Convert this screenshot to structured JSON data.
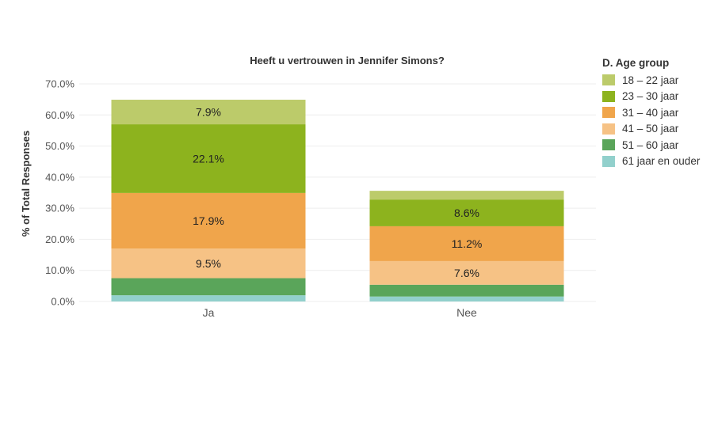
{
  "chart_data": {
    "type": "bar",
    "stacked": true,
    "title": "Heeft u vertrouwen in Jennifer Simons?",
    "ylabel": "% of Total Responses",
    "xlabel": "",
    "ylim": [
      0,
      70
    ],
    "yticks": [
      "70.0%",
      "60.0%",
      "50.0%",
      "40.0%",
      "30.0%",
      "20.0%",
      "10.0%",
      "0.0%"
    ],
    "categories": [
      "Ja",
      "Nee"
    ],
    "legend_title": "D. Age group",
    "legend_position": "right",
    "grid": true,
    "series": [
      {
        "name": "61 jaar en ouder",
        "color": "#92d0cc",
        "values": [
          2.0,
          1.6
        ],
        "labels": [
          "",
          ""
        ]
      },
      {
        "name": "51 – 60 jaar",
        "color": "#5aa55a",
        "values": [
          5.5,
          3.8
        ],
        "labels": [
          "",
          ""
        ]
      },
      {
        "name": "41 – 50 jaar",
        "color": "#f6c285",
        "values": [
          9.5,
          7.6
        ],
        "labels": [
          "9.5%",
          "7.6%"
        ]
      },
      {
        "name": "31 – 40 jaar",
        "color": "#f0a54b",
        "values": [
          17.9,
          11.2
        ],
        "labels": [
          "17.9%",
          "11.2%"
        ]
      },
      {
        "name": "23 – 30 jaar",
        "color": "#8db31e",
        "values": [
          22.1,
          8.6
        ],
        "labels": [
          "22.1%",
          "8.6%"
        ]
      },
      {
        "name": "18 – 22 jaar",
        "color": "#bccb6a",
        "values": [
          7.9,
          2.8
        ],
        "labels": [
          "7.9%",
          ""
        ]
      }
    ]
  }
}
